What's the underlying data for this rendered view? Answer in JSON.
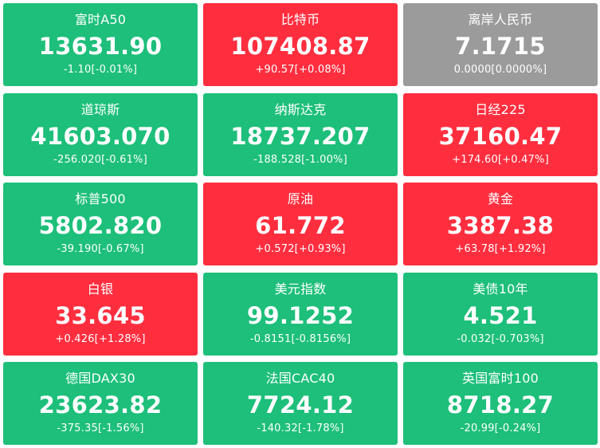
{
  "colors": {
    "down": "#1dbf7a",
    "up": "#ff2e3f",
    "flat": "#9b9b9b",
    "text": "#ffffff"
  },
  "tiles": [
    {
      "name": "富时A50",
      "price": "13631.90",
      "change": "-1.10[-0.01%]",
      "trend": "down"
    },
    {
      "name": "比特币",
      "price": "107408.87",
      "change": "+90.57[+0.08%]",
      "trend": "up"
    },
    {
      "name": "离岸人民币",
      "price": "7.1715",
      "change": "0.0000[0.0000%]",
      "trend": "flat"
    },
    {
      "name": "道琼斯",
      "price": "41603.070",
      "change": "-256.020[-0.61%]",
      "trend": "down"
    },
    {
      "name": "纳斯达克",
      "price": "18737.207",
      "change": "-188.528[-1.00%]",
      "trend": "down"
    },
    {
      "name": "日经225",
      "price": "37160.47",
      "change": "+174.60[+0.47%]",
      "trend": "up"
    },
    {
      "name": "标普500",
      "price": "5802.820",
      "change": "-39.190[-0.67%]",
      "trend": "down"
    },
    {
      "name": "原油",
      "price": "61.772",
      "change": "+0.572[+0.93%]",
      "trend": "up"
    },
    {
      "name": "黄金",
      "price": "3387.38",
      "change": "+63.78[+1.92%]",
      "trend": "up"
    },
    {
      "name": "白银",
      "price": "33.645",
      "change": "+0.426[+1.28%]",
      "trend": "up"
    },
    {
      "name": "美元指数",
      "price": "99.1252",
      "change": "-0.8151[-0.8156%]",
      "trend": "down"
    },
    {
      "name": "美债10年",
      "price": "4.521",
      "change": "-0.032[-0.703%]",
      "trend": "down"
    },
    {
      "name": "德国DAX30",
      "price": "23623.82",
      "change": "-375.35[-1.56%]",
      "trend": "down"
    },
    {
      "name": "法国CAC40",
      "price": "7724.12",
      "change": "-140.32[-1.78%]",
      "trend": "down"
    },
    {
      "name": "英国富时100",
      "price": "8718.27",
      "change": "-20.99[-0.24%]",
      "trend": "down"
    }
  ]
}
